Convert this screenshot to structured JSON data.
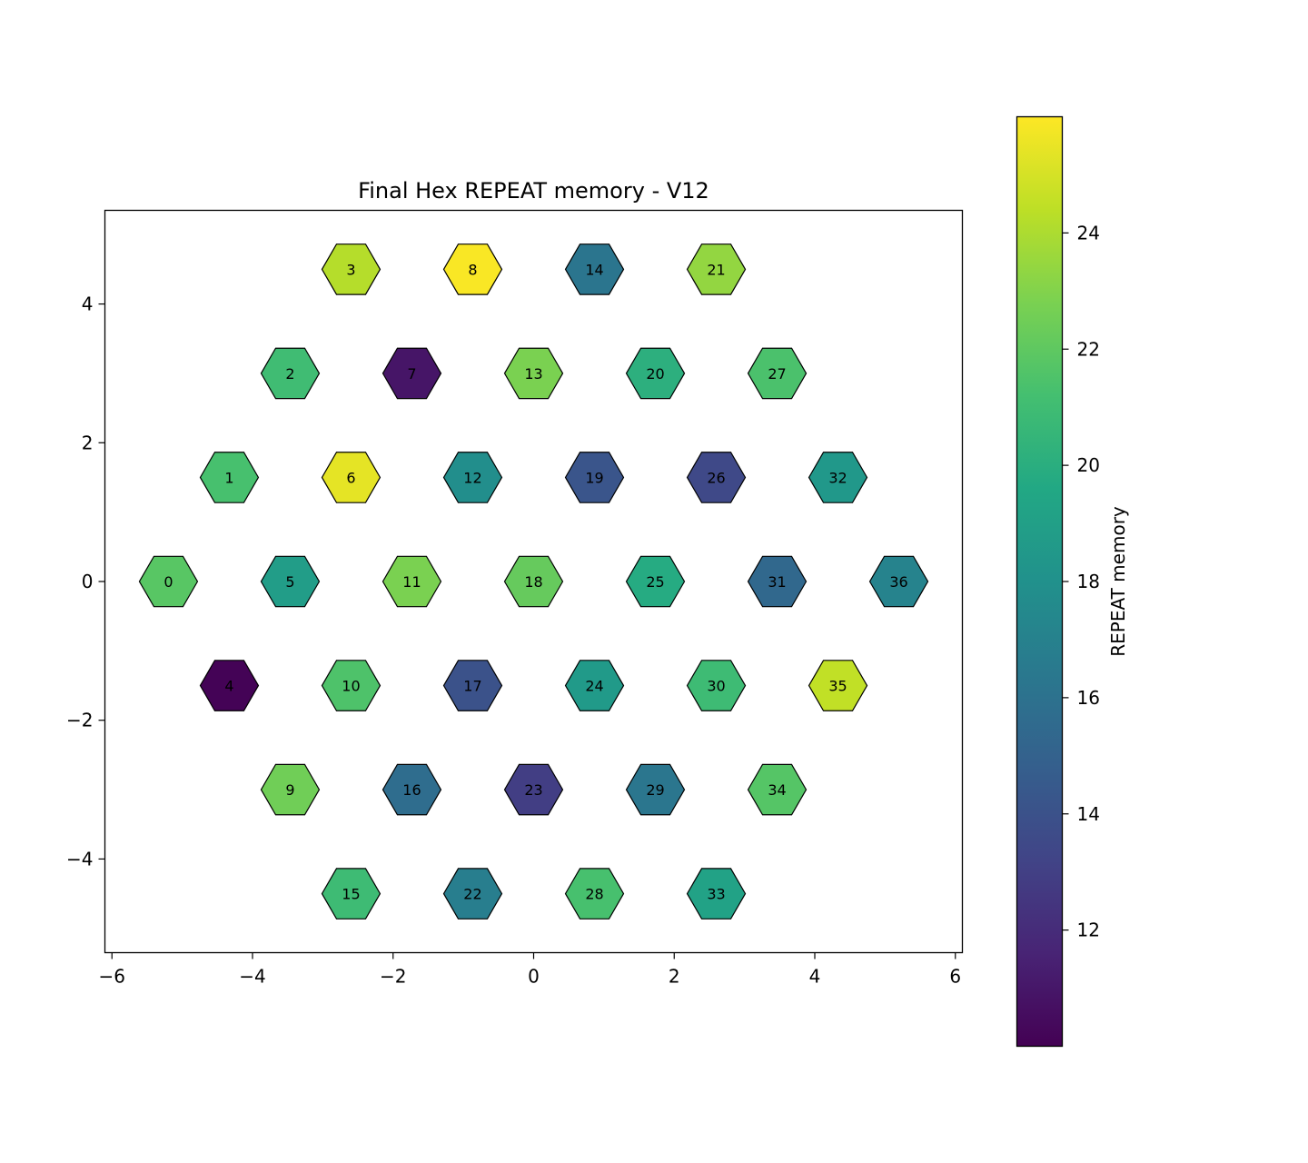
{
  "chart_data": {
    "type": "hexbin",
    "title": "Final Hex REPEAT memory - V12",
    "xlabel": "",
    "ylabel": "",
    "xlim": [
      -6.1,
      6.1
    ],
    "ylim": [
      -5.35,
      5.35
    ],
    "x_ticks": [
      -6,
      -4,
      -2,
      0,
      2,
      4,
      6
    ],
    "y_ticks": [
      -4,
      -2,
      0,
      2,
      4
    ],
    "x_tick_labels": [
      "−6",
      "−4",
      "−2",
      "0",
      "2",
      "4",
      "6"
    ],
    "y_tick_labels": [
      "−4",
      "−2",
      "0",
      "2",
      "4"
    ],
    "grid": false,
    "colormap": "viridis",
    "colorbar": {
      "label": "REPEAT memory",
      "range": [
        10,
        26
      ],
      "ticks": [
        12,
        14,
        16,
        18,
        20,
        22,
        24
      ],
      "tick_labels": [
        "12",
        "14",
        "16",
        "18",
        "20",
        "22",
        "24"
      ]
    },
    "cells": [
      {
        "id": "0",
        "x": -5.196,
        "y": 0.0,
        "value": 21.8
      },
      {
        "id": "1",
        "x": -4.33,
        "y": 1.5,
        "value": 21.3
      },
      {
        "id": "2",
        "x": -3.464,
        "y": 3.0,
        "value": 21.0
      },
      {
        "id": "3",
        "x": -2.598,
        "y": 4.5,
        "value": 24.2
      },
      {
        "id": "4",
        "x": -4.33,
        "y": -1.5,
        "value": 10.1
      },
      {
        "id": "5",
        "x": -3.464,
        "y": 0.0,
        "value": 18.8
      },
      {
        "id": "6",
        "x": -2.598,
        "y": 1.5,
        "value": 25.4
      },
      {
        "id": "7",
        "x": -1.732,
        "y": 3.0,
        "value": 10.9
      },
      {
        "id": "8",
        "x": -0.866,
        "y": 4.5,
        "value": 25.9
      },
      {
        "id": "9",
        "x": -3.464,
        "y": -3.0,
        "value": 22.5
      },
      {
        "id": "10",
        "x": -2.598,
        "y": -1.5,
        "value": 21.5
      },
      {
        "id": "11",
        "x": -1.732,
        "y": 0.0,
        "value": 22.8
      },
      {
        "id": "12",
        "x": -0.866,
        "y": 1.5,
        "value": 17.8
      },
      {
        "id": "13",
        "x": 0.0,
        "y": 3.0,
        "value": 22.8
      },
      {
        "id": "14",
        "x": 0.866,
        "y": 4.5,
        "value": 16.2
      },
      {
        "id": "15",
        "x": -2.598,
        "y": -4.5,
        "value": 20.9
      },
      {
        "id": "16",
        "x": -1.732,
        "y": -3.0,
        "value": 15.7
      },
      {
        "id": "17",
        "x": -0.866,
        "y": -1.5,
        "value": 14.0
      },
      {
        "id": "18",
        "x": 0.0,
        "y": 0.0,
        "value": 22.2
      },
      {
        "id": "19",
        "x": 0.866,
        "y": 1.5,
        "value": 14.2
      },
      {
        "id": "20",
        "x": 1.732,
        "y": 3.0,
        "value": 20.1
      },
      {
        "id": "21",
        "x": 2.598,
        "y": 4.5,
        "value": 23.4
      },
      {
        "id": "22",
        "x": -0.866,
        "y": -4.5,
        "value": 16.8
      },
      {
        "id": "23",
        "x": 0.0,
        "y": -3.0,
        "value": 12.9
      },
      {
        "id": "24",
        "x": 0.866,
        "y": -1.5,
        "value": 18.6
      },
      {
        "id": "25",
        "x": 1.732,
        "y": 0.0,
        "value": 19.8
      },
      {
        "id": "26",
        "x": 2.598,
        "y": 1.5,
        "value": 13.5
      },
      {
        "id": "27",
        "x": 3.464,
        "y": 3.0,
        "value": 21.4
      },
      {
        "id": "28",
        "x": 0.866,
        "y": -4.5,
        "value": 21.3
      },
      {
        "id": "29",
        "x": 1.732,
        "y": -3.0,
        "value": 16.3
      },
      {
        "id": "30",
        "x": 2.598,
        "y": -1.5,
        "value": 20.9
      },
      {
        "id": "31",
        "x": 3.464,
        "y": 0.0,
        "value": 15.4
      },
      {
        "id": "32",
        "x": 4.33,
        "y": 1.5,
        "value": 18.5
      },
      {
        "id": "33",
        "x": 2.598,
        "y": -4.5,
        "value": 19.2
      },
      {
        "id": "34",
        "x": 3.464,
        "y": -3.0,
        "value": 21.7
      },
      {
        "id": "35",
        "x": 4.33,
        "y": -1.5,
        "value": 24.5
      },
      {
        "id": "36",
        "x": 5.196,
        "y": 0.0,
        "value": 17.1
      }
    ]
  }
}
